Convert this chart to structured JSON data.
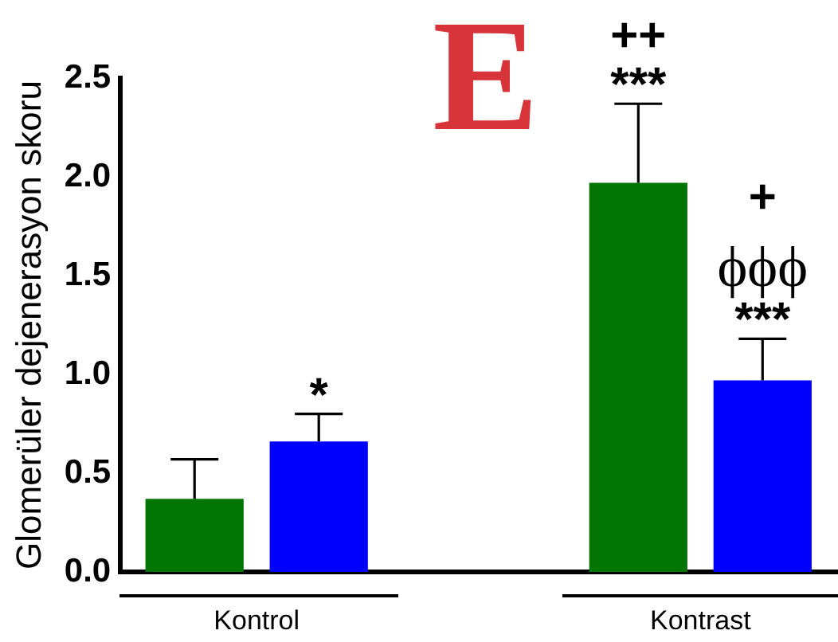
{
  "chart_data": {
    "type": "bar",
    "categories": [
      "Kontrol",
      "Kontrast"
    ],
    "series": [
      {
        "color": "#027502",
        "values": [
          0.37,
          1.97
        ],
        "errors": [
          0.2,
          0.4
        ]
      },
      {
        "color": "#0000ff",
        "values": [
          0.66,
          0.97
        ],
        "errors": [
          0.14,
          0.21
        ]
      }
    ],
    "ylabel": "Glomerüler dejenerasyon skoru",
    "ylim": [
      0,
      2.5
    ],
    "yticks": [
      {
        "value": 0,
        "label": "0.0"
      },
      0.5,
      {
        "value": 1,
        "label": "1.0"
      },
      1.5,
      {
        "value": 2,
        "label": "2.0"
      },
      2.5
    ],
    "grid": false,
    "legend": false,
    "annotations": [
      "E",
      "*",
      "***",
      "++",
      "***",
      "ϕϕϕ",
      "+"
    ]
  }
}
